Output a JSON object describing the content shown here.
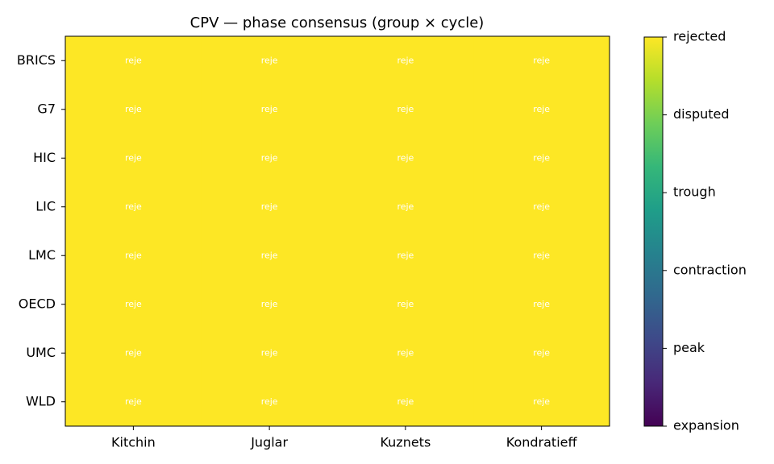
{
  "chart_data": {
    "type": "heatmap",
    "title": "CPV — phase consensus (group × cycle)",
    "x": [
      "Kitchin",
      "Juglar",
      "Kuznets",
      "Kondratieff"
    ],
    "y": [
      "BRICS",
      "G7",
      "HIC",
      "LIC",
      "LMC",
      "OECD",
      "UMC",
      "WLD"
    ],
    "values": [
      [
        5,
        5,
        5,
        5
      ],
      [
        5,
        5,
        5,
        5
      ],
      [
        5,
        5,
        5,
        5
      ],
      [
        5,
        5,
        5,
        5
      ],
      [
        5,
        5,
        5,
        5
      ],
      [
        5,
        5,
        5,
        5
      ],
      [
        5,
        5,
        5,
        5
      ],
      [
        5,
        5,
        5,
        5
      ]
    ],
    "value_labels": [
      [
        "reje",
        "reje",
        "reje",
        "reje"
      ],
      [
        "reje",
        "reje",
        "reje",
        "reje"
      ],
      [
        "reje",
        "reje",
        "reje",
        "reje"
      ],
      [
        "reje",
        "reje",
        "reje",
        "reje"
      ],
      [
        "reje",
        "reje",
        "reje",
        "reje"
      ],
      [
        "reje",
        "reje",
        "reje",
        "reje"
      ],
      [
        "reje",
        "reje",
        "reje",
        "reje"
      ],
      [
        "reje",
        "reje",
        "reje",
        "reje"
      ]
    ],
    "colormap": "viridis",
    "clim": [
      0,
      5
    ],
    "cticks": [
      {
        "value": 0,
        "label": "expansion"
      },
      {
        "value": 1,
        "label": "peak"
      },
      {
        "value": 2,
        "label": "contraction"
      },
      {
        "value": 3,
        "label": "trough"
      },
      {
        "value": 4,
        "label": "disputed"
      },
      {
        "value": 5,
        "label": "rejected"
      }
    ]
  }
}
